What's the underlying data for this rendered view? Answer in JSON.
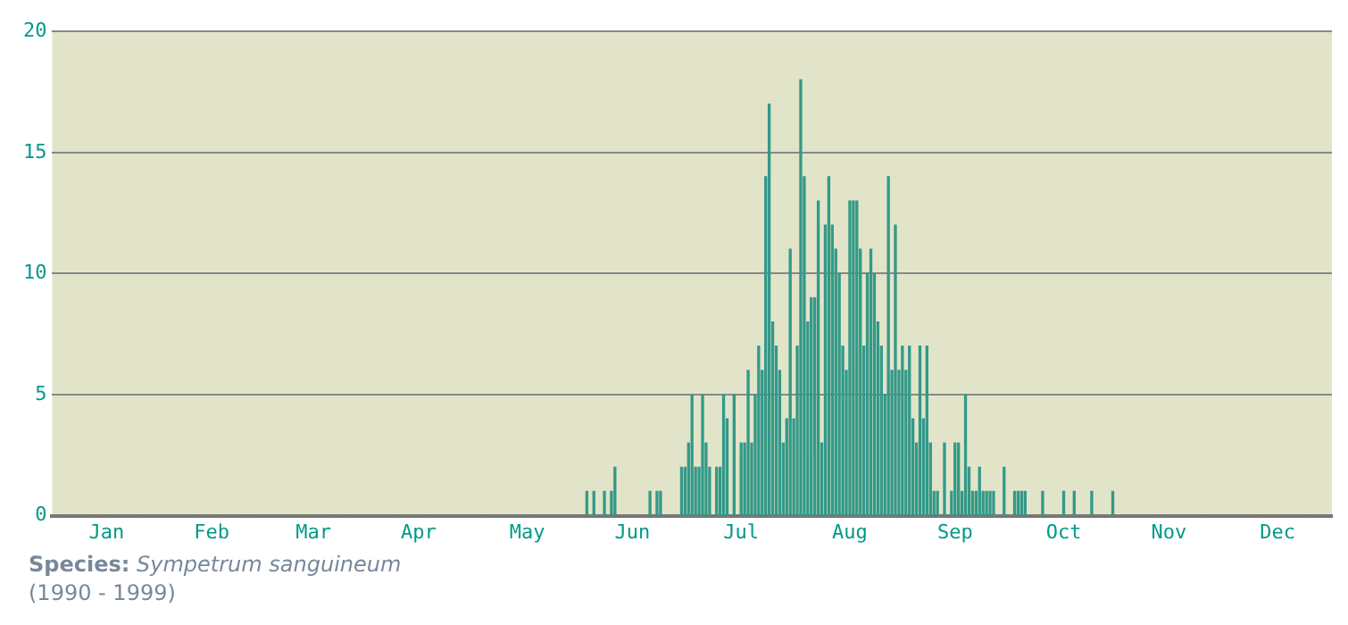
{
  "chart_data": {
    "type": "bar",
    "categories": [
      null,
      null,
      null,
      null,
      null,
      null,
      null,
      null,
      null,
      null,
      null,
      null,
      null,
      null,
      null,
      "Jan",
      null,
      null,
      null,
      null,
      null,
      null,
      null,
      null,
      null,
      null,
      null,
      null,
      null,
      null,
      null,
      null,
      null,
      null,
      null,
      null,
      null,
      null,
      null,
      null,
      null,
      null,
      null,
      null,
      null,
      "Feb",
      null,
      null,
      null,
      null,
      null,
      null,
      null,
      null,
      null,
      null,
      null,
      null,
      null,
      null,
      null,
      null,
      null,
      null,
      null,
      null,
      null,
      null,
      null,
      null,
      null,
      null,
      null,
      null,
      "Mar",
      null,
      null,
      null,
      null,
      null,
      null,
      null,
      null,
      null,
      null,
      null,
      null,
      null,
      null,
      null,
      null,
      null,
      null,
      null,
      null,
      null,
      null,
      null,
      null,
      null,
      null,
      null,
      null,
      null,
      "Apr",
      null,
      null,
      null,
      null,
      null,
      null,
      null,
      null,
      null,
      null,
      null,
      null,
      null,
      null,
      null,
      null,
      null,
      null,
      null,
      null,
      null,
      null,
      null,
      null,
      null,
      null,
      null,
      null,
      null,
      null,
      "May",
      null,
      null,
      null,
      null,
      null,
      null,
      null,
      null,
      null,
      null,
      null,
      null,
      null,
      null,
      null,
      null,
      null,
      null,
      null,
      null,
      null,
      null,
      null,
      null,
      null,
      null,
      null,
      null,
      null,
      "Jun",
      null,
      null,
      null,
      null,
      null,
      null,
      null,
      null,
      null,
      null,
      null,
      null,
      null,
      null,
      null,
      null,
      null,
      null,
      null,
      null,
      null,
      null,
      null,
      null,
      null,
      null,
      null,
      null,
      null,
      null,
      "Jul",
      null,
      null,
      null,
      null,
      null,
      null,
      null,
      null,
      null,
      null,
      null,
      null,
      null,
      null,
      null,
      null,
      null,
      null,
      null,
      null,
      null,
      null,
      null,
      null,
      null,
      null,
      null,
      null,
      null,
      null,
      "Aug",
      null,
      null,
      null,
      null,
      null,
      null,
      null,
      null,
      null,
      null,
      null,
      null,
      null,
      null,
      null,
      null,
      null,
      null,
      null,
      null,
      null,
      null,
      null,
      null,
      null,
      null,
      null,
      null,
      null,
      "Sep",
      null,
      null,
      null,
      null,
      null,
      null,
      null,
      null,
      null,
      null,
      null,
      null,
      null,
      null,
      null,
      null,
      null,
      null,
      null,
      null,
      null,
      null,
      null,
      null,
      null,
      null,
      null,
      null,
      null,
      null,
      "Oct",
      null,
      null,
      null,
      null,
      null,
      null,
      null,
      null,
      null,
      null,
      null,
      null,
      null,
      null,
      null,
      null,
      null,
      null,
      null,
      null,
      null,
      null,
      null,
      null,
      null,
      null,
      null,
      null,
      null,
      "Nov",
      null,
      null,
      null,
      null,
      null,
      null,
      null,
      null,
      null,
      null,
      null,
      null,
      null,
      null,
      null,
      null,
      null,
      null,
      null,
      null,
      null,
      null,
      null,
      null,
      null,
      null,
      null,
      null,
      null,
      null,
      "Dec",
      null,
      null,
      null,
      null,
      null,
      null,
      null,
      null,
      null,
      null,
      null,
      null,
      null,
      null,
      null
    ],
    "values": [
      0,
      0,
      0,
      0,
      0,
      0,
      0,
      0,
      0,
      0,
      0,
      0,
      0,
      0,
      0,
      0,
      0,
      0,
      0,
      0,
      0,
      0,
      0,
      0,
      0,
      0,
      0,
      0,
      0,
      0,
      0,
      0,
      0,
      0,
      0,
      0,
      0,
      0,
      0,
      0,
      0,
      0,
      0,
      0,
      0,
      0,
      0,
      0,
      0,
      0,
      0,
      0,
      0,
      0,
      0,
      0,
      0,
      0,
      0,
      0,
      0,
      0,
      0,
      0,
      0,
      0,
      0,
      0,
      0,
      0,
      0,
      0,
      0,
      0,
      0,
      0,
      0,
      0,
      0,
      0,
      0,
      0,
      0,
      0,
      0,
      0,
      0,
      0,
      0,
      0,
      0,
      0,
      0,
      0,
      0,
      0,
      0,
      0,
      0,
      0,
      0,
      0,
      0,
      0,
      0,
      0,
      0,
      0,
      0,
      0,
      0,
      0,
      0,
      0,
      0,
      0,
      0,
      0,
      0,
      0,
      0,
      0,
      0,
      0,
      0,
      0,
      0,
      0,
      0,
      0,
      0,
      0,
      0,
      0,
      0,
      0,
      0,
      0,
      0,
      0,
      0,
      0,
      0,
      0,
      0,
      0,
      0,
      0,
      0,
      0,
      0,
      0,
      1,
      0,
      1,
      0,
      0,
      1,
      0,
      1,
      2,
      0,
      0,
      0,
      0,
      0,
      0,
      0,
      0,
      0,
      1,
      0,
      1,
      1,
      0,
      0,
      0,
      0,
      0,
      2,
      2,
      3,
      5,
      2,
      2,
      5,
      3,
      2,
      0,
      2,
      2,
      5,
      4,
      0,
      5,
      0,
      3,
      3,
      6,
      3,
      5,
      7,
      6,
      14,
      17,
      8,
      7,
      6,
      3,
      4,
      11,
      4,
      7,
      18,
      14,
      8,
      9,
      9,
      13,
      3,
      12,
      14,
      12,
      11,
      10,
      7,
      6,
      13,
      13,
      13,
      11,
      7,
      10,
      11,
      10,
      8,
      7,
      5,
      14,
      6,
      12,
      6,
      7,
      6,
      7,
      4,
      3,
      7,
      4,
      7,
      3,
      1,
      1,
      0,
      3,
      0,
      1,
      3,
      3,
      1,
      5,
      2,
      1,
      1,
      2,
      1,
      1,
      1,
      1,
      0,
      0,
      2,
      0,
      0,
      1,
      1,
      1,
      1,
      0,
      0,
      0,
      0,
      1,
      0,
      0,
      0,
      0,
      0,
      1,
      0,
      0,
      1,
      0,
      0,
      0,
      0,
      1,
      0,
      0,
      0,
      0,
      0,
      1,
      0,
      0,
      0,
      0,
      0,
      0,
      0,
      0,
      0,
      0,
      0,
      0,
      0,
      0,
      0,
      0,
      0,
      0,
      0,
      0,
      0,
      0,
      0,
      0,
      0,
      0,
      0,
      0,
      0,
      0,
      0,
      0,
      0,
      0,
      0,
      0,
      0,
      0,
      0,
      0,
      0,
      0,
      0,
      0,
      0,
      0,
      0,
      0,
      0,
      0,
      0,
      0,
      0,
      0,
      0,
      0,
      0,
      0,
      0,
      0,
      0,
      0
    ],
    "color": "#339988",
    "ylim": [
      0,
      20
    ],
    "yticks": [
      0,
      5,
      10,
      15,
      20
    ],
    "grid": "y",
    "annotations": [
      "Species: Sympetrum sanguineum",
      "(1990 - 1999)"
    ]
  }
}
